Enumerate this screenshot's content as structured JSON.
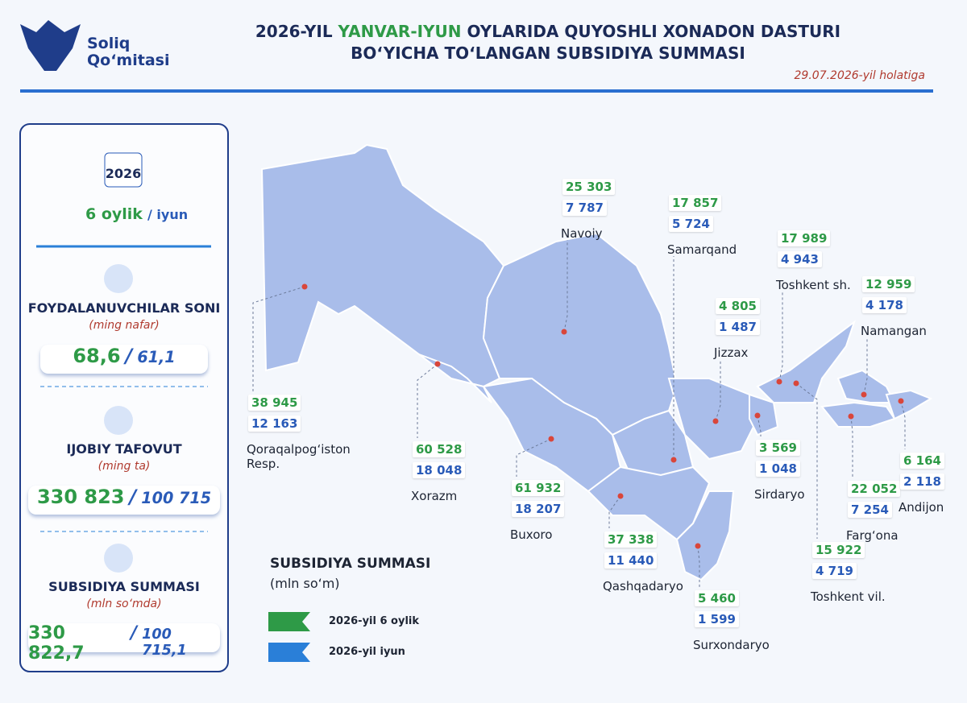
{
  "header": {
    "logo": "Soliq Qo‘mitasi",
    "title_parts": [
      "2026-YIL ",
      "YANVAR-IYUN",
      " OYLARIDA QUYOSHLI XONADON DASTURI"
    ],
    "title_line2": "BO‘YICHA TO‘LANGAN SUBSIDIYA SUMMASI",
    "date": "29.07.2026-yil holatiga"
  },
  "sidebar": {
    "calendar": "2026",
    "period_main": "6 oylik",
    "period_sub": "/ iyun",
    "blocks": [
      {
        "title": "FOYDALANUVCHILAR SONI",
        "unit": "(ming nafar)",
        "value_main": "68,6",
        "sep": "/",
        "value_sub": "61,1"
      },
      {
        "title": "IJOBIY TAFOVUT",
        "unit": "(ming ta)",
        "value_main": "330 823",
        "sep": "/",
        "value_sub": "100 715"
      },
      {
        "title": "SUBSIDIYA SUMMASI",
        "unit": "(mln so‘mda)",
        "value_main": "330 822,7",
        "sep": "/",
        "value_sub": "100 715,1"
      }
    ]
  },
  "legend": {
    "title": "SUBSIDIYA SUMMASI",
    "unit": "(mln so‘m)",
    "items": [
      "2026-yil 6 oylik",
      "2026-yil iyun"
    ]
  },
  "regions": [
    {
      "name": "Navoiy",
      "total": "25 303",
      "june": "7 787"
    },
    {
      "name": "Samarqand",
      "total": "17 857",
      "june": "5 724"
    },
    {
      "name": "Toshkent sh.",
      "total": "17 989",
      "june": "4 943"
    },
    {
      "name": "Namangan",
      "total": "12 959",
      "june": "4 178"
    },
    {
      "name": "Jizzax",
      "total": "4 805",
      "june": "1 487"
    },
    {
      "name": "Qoraqalpog‘iston Resp.",
      "total": "38 945",
      "june": "12 163"
    },
    {
      "name": "Xorazm",
      "total": "60 528",
      "june": "18 048"
    },
    {
      "name": "Buxoro",
      "total": "61 932",
      "june": "18 207"
    },
    {
      "name": "Qashqadaryo",
      "total": "37 338",
      "june": "11 440"
    },
    {
      "name": "Surxondaryo",
      "total": "5 460",
      "june": "1 599"
    },
    {
      "name": "Sirdaryo",
      "total": "3 569",
      "june": "1 048"
    },
    {
      "name": "Toshkent vil.",
      "total": "15 922",
      "june": "4 719"
    },
    {
      "name": "Farg‘ona",
      "total": "22 052",
      "june": "7 254"
    },
    {
      "name": "Andijon",
      "total": "6 164",
      "june": "2 118"
    }
  ]
}
